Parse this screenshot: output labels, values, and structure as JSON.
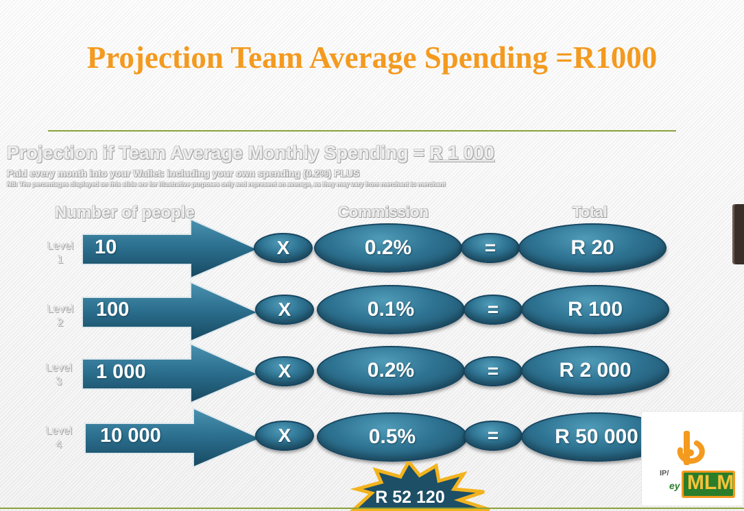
{
  "title": "Projection Team Average Spending =R1000",
  "subtitle": {
    "prefix": "Projection if Team Average Monthly Spending = ",
    "amount": "R 1 000"
  },
  "paid_line": "Paid every month into your Wallet: including your own spending (0.2%) PLUS",
  "note_line": "NB: The percentages displayed on this slide are for illustrative purposes only and represent an average, as they may vary from merchant to merchant",
  "columns": {
    "people": "Number of people",
    "commission": "Commission",
    "total": "Total"
  },
  "operators": {
    "multiply": "X",
    "equals": "="
  },
  "level_word": "Level",
  "rows": [
    {
      "level": "1",
      "people": "10",
      "commission": "0.2%",
      "total": "R 20"
    },
    {
      "level": "2",
      "people": "100",
      "commission": "0.1%",
      "total": "R 100"
    },
    {
      "level": "3",
      "people": "1 000",
      "commission": "0.2%",
      "total": "R 2 000"
    },
    {
      "level": "4",
      "people": "10 000",
      "commission": "0.5%",
      "total": "R 50 000"
    }
  ],
  "grand_total": "R 52 120",
  "logo": {
    "prefix": "IP/",
    "brand": "MLM",
    "small": "ey"
  },
  "colors": {
    "title": "#f39a1f",
    "rule": "#8aa13b",
    "shape_dark": "#1c4f69",
    "shape_light": "#4f9bb7",
    "star": "#f2b31f"
  }
}
